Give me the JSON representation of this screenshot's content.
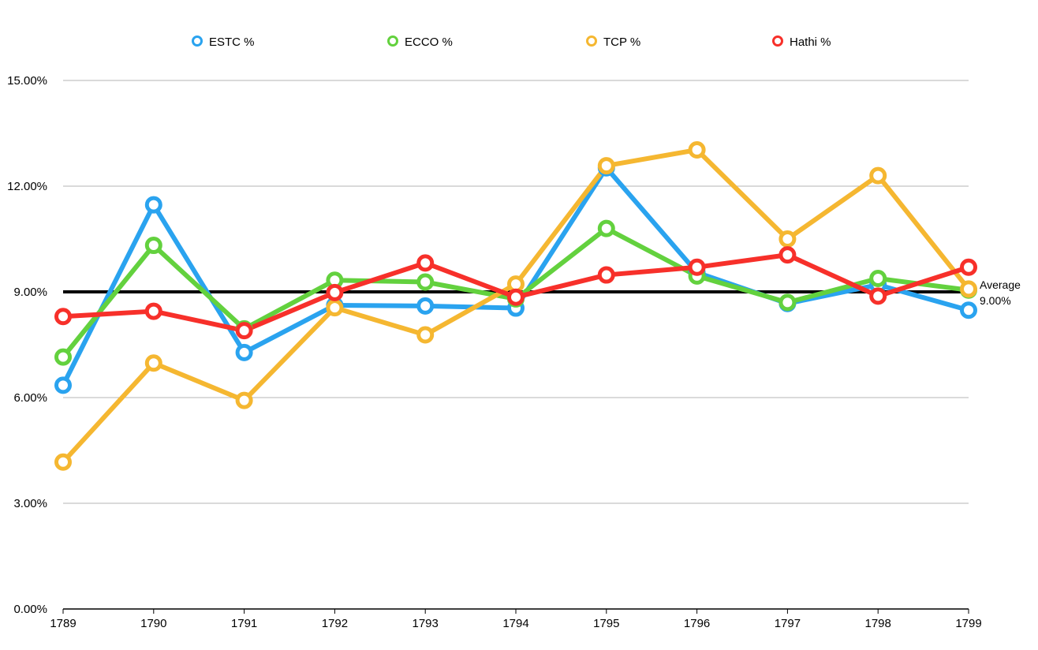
{
  "chart_data": {
    "type": "line",
    "title": "",
    "xlabel": "",
    "ylabel": "",
    "categories": [
      "1789",
      "1790",
      "1791",
      "1792",
      "1793",
      "1794",
      "1795",
      "1796",
      "1797",
      "1798",
      "1799"
    ],
    "y_ticks": [
      "0.00%",
      "3.00%",
      "6.00%",
      "9.00%",
      "12.00%",
      "15.00%"
    ],
    "ylim": [
      0,
      15
    ],
    "grid": true,
    "legend_position": "top",
    "series": [
      {
        "name": "ESTC %",
        "color": "#2aa3ef",
        "values": [
          6.35,
          11.47,
          7.28,
          8.62,
          8.6,
          8.54,
          12.52,
          9.55,
          8.67,
          9.2,
          8.48
        ]
      },
      {
        "name": "ECCO %",
        "color": "#63d13e",
        "values": [
          7.15,
          10.32,
          7.95,
          9.33,
          9.28,
          8.8,
          10.8,
          9.45,
          8.7,
          9.38,
          9.05
        ]
      },
      {
        "name": "TCP %",
        "color": "#f5b731",
        "values": [
          4.17,
          6.98,
          5.92,
          8.55,
          7.78,
          9.22,
          12.58,
          13.03,
          10.5,
          12.3,
          9.08
        ]
      },
      {
        "name": "Hathi %",
        "color": "#f7302a",
        "values": [
          8.3,
          8.45,
          7.9,
          8.98,
          9.82,
          8.85,
          9.48,
          9.7,
          10.05,
          8.88,
          9.7
        ]
      }
    ],
    "reference_line": {
      "value": 9.0,
      "label": "Average",
      "value_label": "9.00%",
      "color": "#000000"
    }
  }
}
